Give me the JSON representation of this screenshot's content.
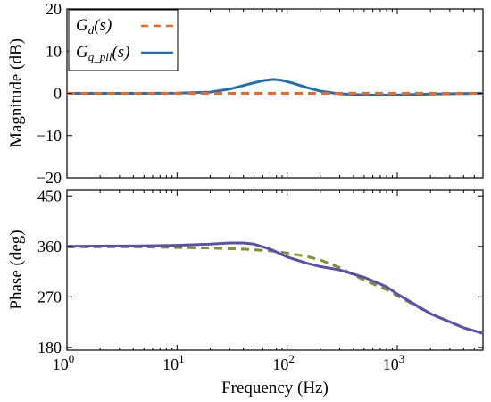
{
  "chart_data": [
    {
      "type": "line",
      "panel": "magnitude",
      "ylabel": "Magnitude (dB)",
      "xlabel": "",
      "xscale": "log",
      "xlim": [
        1,
        6000
      ],
      "ylim": [
        -20,
        20
      ],
      "yticks": [
        "20",
        "10",
        "0",
        "−10",
        "−20"
      ],
      "ytick_values": [
        20,
        10,
        0,
        -10,
        -20
      ],
      "grid": false,
      "legend": {
        "position": "top-left",
        "entries": [
          {
            "label_main": "G",
            "label_sub": "d",
            "label_tail": "(s)",
            "color": "#f26522",
            "style": "dashed"
          },
          {
            "label_main": "G",
            "label_sub": "q_pll",
            "label_tail": "(s)",
            "color": "#1f6fb4",
            "style": "solid"
          }
        ]
      },
      "series": [
        {
          "key": "Gd",
          "color": "#f26522",
          "style": "dashed",
          "x": [
            1,
            10,
            100,
            1000,
            6000
          ],
          "y": [
            0,
            0,
            0,
            0,
            0
          ]
        },
        {
          "key": "Gq_pll",
          "color": "#1f6fb4",
          "style": "solid",
          "x": [
            1,
            5,
            10,
            20,
            30,
            45,
            60,
            75,
            90,
            110,
            150,
            200,
            300,
            500,
            800,
            1000,
            2000,
            6000
          ],
          "y": [
            0,
            0,
            0.05,
            0.3,
            1.0,
            2.2,
            3.0,
            3.3,
            3.1,
            2.5,
            1.4,
            0.5,
            -0.1,
            -0.35,
            -0.4,
            -0.35,
            -0.15,
            0
          ]
        }
      ]
    },
    {
      "type": "line",
      "panel": "phase",
      "ylabel": "Phase (deg)",
      "xlabel": "Frequency (Hz)",
      "xscale": "log",
      "xlim": [
        1,
        6000
      ],
      "ylim": [
        175,
        460
      ],
      "yticks": [
        "450",
        "360",
        "270",
        "180"
      ],
      "ytick_values": [
        450,
        360,
        270,
        180
      ],
      "xticks": [
        {
          "value": 1,
          "base": "10",
          "exp": "0"
        },
        {
          "value": 10,
          "base": "10",
          "exp": "1"
        },
        {
          "value": 100,
          "base": "10",
          "exp": "2"
        },
        {
          "value": 1000,
          "base": "10",
          "exp": "3"
        }
      ],
      "grid": false,
      "series": [
        {
          "key": "Gd",
          "color": "#8a8a2e",
          "style": "dashed",
          "x": [
            1,
            5,
            10,
            20,
            40,
            70,
            100,
            150,
            200,
            300,
            500,
            800,
            1000,
            2000,
            4000,
            6000
          ],
          "y": [
            359,
            359,
            358,
            357,
            355,
            352,
            348,
            342,
            336,
            322,
            300,
            283,
            272,
            240,
            215,
            205
          ]
        },
        {
          "key": "Gq_pll",
          "color": "#5a4fb0",
          "style": "solid",
          "x": [
            1,
            5,
            10,
            20,
            30,
            40,
            50,
            70,
            100,
            150,
            200,
            300,
            500,
            800,
            1000,
            2000,
            4000,
            6000
          ],
          "y": [
            360,
            361,
            362,
            364,
            366,
            366,
            364,
            355,
            341,
            330,
            324,
            318,
            305,
            288,
            275,
            240,
            215,
            205
          ]
        }
      ]
    }
  ]
}
